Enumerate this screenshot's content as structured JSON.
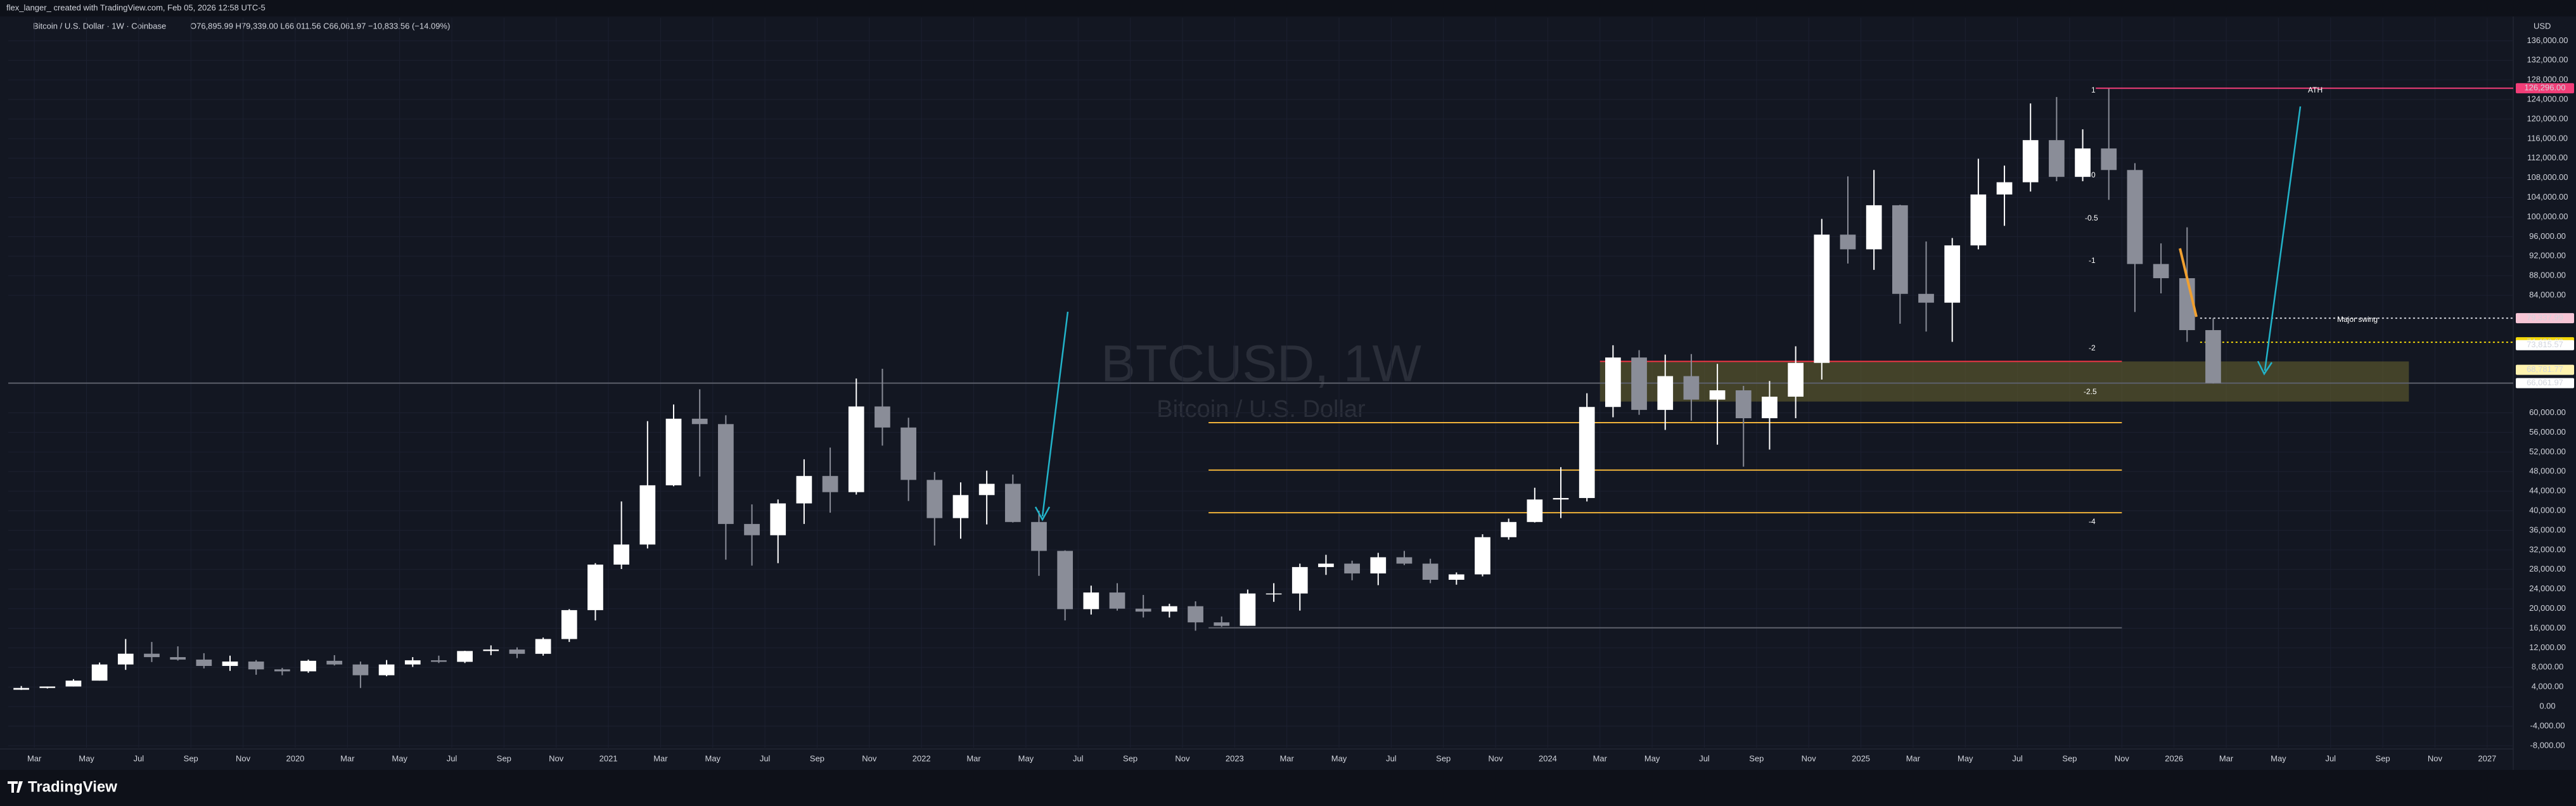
{
  "header": {
    "author": "flex_langer_ created with TradingView.com, Feb 05, 2026 12:58 UTC-5",
    "symbol": "Bitcoin / U.S. Dollar · 1W · Coinbase",
    "ohlc": "O76,895.99 H79,339.00 L66,011.56 C66,061.97 −10,833.56 (−14.09%)"
  },
  "chart_data": {
    "type": "candlestick",
    "watermark": "BTCUSD, 1W",
    "watermark_sub": "Bitcoin / U.S. Dollar",
    "currency": "USD",
    "x": [
      "2019-02",
      "2019-03",
      "2019-04",
      "2019-05",
      "2019-06",
      "2019-07",
      "2019-08",
      "2019-09",
      "2019-10",
      "2019-11",
      "2019-12",
      "2020-01",
      "2020-02",
      "2020-03",
      "2020-04",
      "2020-05",
      "2020-06",
      "2020-07",
      "2020-08",
      "2020-09",
      "2020-10",
      "2020-11",
      "2020-12",
      "2021-01",
      "2021-02",
      "2021-03",
      "2021-04",
      "2021-05",
      "2021-06",
      "2021-07",
      "2021-08",
      "2021-09",
      "2021-10",
      "2021-11",
      "2021-12",
      "2022-01",
      "2022-02",
      "2022-03",
      "2022-04",
      "2022-05",
      "2022-06",
      "2022-07",
      "2022-08",
      "2022-09",
      "2022-10",
      "2022-11",
      "2022-12",
      "2023-01",
      "2023-02",
      "2023-03",
      "2023-04",
      "2023-05",
      "2023-06",
      "2023-07",
      "2023-08",
      "2023-09",
      "2023-10",
      "2023-11",
      "2023-12",
      "2024-01",
      "2024-02",
      "2024-03",
      "2024-04",
      "2024-05",
      "2024-06",
      "2024-07",
      "2024-08",
      "2024-09",
      "2024-10",
      "2024-11",
      "2024-12",
      "2025-01",
      "2025-02",
      "2025-03",
      "2025-04",
      "2025-05",
      "2025-06",
      "2025-07",
      "2025-08",
      "2025-09",
      "2025-10",
      "2025-11",
      "2025-12",
      "2026-01",
      "2026-02"
    ],
    "open": [
      3440,
      3800,
      4100,
      5300,
      8600,
      10800,
      10100,
      9600,
      8300,
      9200,
      7600,
      7200,
      9350,
      8600,
      6400,
      8600,
      9450,
      9140,
      11350,
      11650,
      10780,
      13800,
      19700,
      29000,
      33100,
      45200,
      58800,
      57700,
      37300,
      35000,
      41500,
      47100,
      43800,
      61300,
      57000,
      46300,
      38500,
      43200,
      45500,
      37700,
      31800,
      19900,
      23300,
      20000,
      19400,
      20500,
      17200,
      16500,
      23100,
      23100,
      28500,
      29200,
      27200,
      30500,
      29200,
      25900,
      27000,
      34600,
      37700,
      42300,
      42600,
      61200,
      71300,
      60600,
      67500,
      62700,
      64600,
      58900,
      63300,
      70200,
      96400,
      93400,
      102400,
      84300,
      82500,
      94200,
      104600,
      107100,
      115700,
      108200,
      114000,
      109600,
      90400,
      87500,
      76895.99
    ],
    "high": [
      4200,
      4100,
      5600,
      9000,
      13800,
      13200,
      12300,
      10900,
      10400,
      9500,
      7900,
      9600,
      10500,
      9200,
      9500,
      10100,
      10400,
      11400,
      12500,
      12100,
      14100,
      19900,
      29300,
      41900,
      58300,
      61700,
      64800,
      59500,
      41300,
      42300,
      50500,
      52900,
      67000,
      69000,
      59000,
      47900,
      45800,
      48200,
      47400,
      40000,
      31900,
      24700,
      25200,
      22800,
      21000,
      21500,
      18400,
      23900,
      25200,
      29200,
      31000,
      29800,
      31400,
      31800,
      30200,
      27400,
      35200,
      38400,
      44700,
      48900,
      64000,
      73800,
      72800,
      71900,
      72000,
      70000,
      65500,
      66500,
      73600,
      99600,
      108300,
      109600,
      102500,
      95000,
      95700,
      111900,
      110500,
      123200,
      124500,
      117900,
      126200,
      111000,
      94600,
      97900,
      79339
    ],
    "low": [
      3400,
      3700,
      4100,
      5300,
      7500,
      9100,
      9400,
      7800,
      7300,
      6500,
      6400,
      6900,
      8400,
      3800,
      6200,
      8100,
      8900,
      8900,
      10500,
      9900,
      10400,
      13200,
      17600,
      28100,
      32300,
      45000,
      47000,
      30000,
      28800,
      29300,
      37300,
      39600,
      43300,
      53300,
      42000,
      32900,
      34300,
      37200,
      37600,
      26700,
      17600,
      18800,
      19600,
      18200,
      18200,
      15500,
      16300,
      16500,
      21400,
      19600,
      26900,
      25800,
      24800,
      28900,
      25200,
      24900,
      26600,
      34100,
      37600,
      38500,
      41900,
      59100,
      59600,
      56500,
      58400,
      53500,
      49000,
      52500,
      58900,
      66800,
      90500,
      89200,
      78200,
      76600,
      74500,
      93400,
      98200,
      105200,
      107300,
      107300,
      103500,
      80600,
      84400,
      74500,
      66011.56
    ],
    "close": [
      3800,
      4100,
      5300,
      8600,
      10800,
      10100,
      9600,
      8300,
      9200,
      7600,
      7200,
      9350,
      8600,
      6400,
      8600,
      9450,
      9140,
      11350,
      11650,
      10780,
      13800,
      19700,
      29000,
      33100,
      45200,
      58800,
      57700,
      37300,
      35000,
      41500,
      47100,
      43800,
      61300,
      57000,
      46300,
      38500,
      43200,
      45500,
      37700,
      31800,
      19900,
      23300,
      20000,
      19400,
      20500,
      17200,
      16500,
      23100,
      23100,
      28500,
      29200,
      27200,
      30500,
      29200,
      25900,
      27000,
      34600,
      37700,
      42300,
      42600,
      61200,
      71300,
      60600,
      67500,
      62700,
      64600,
      58900,
      63300,
      70200,
      96400,
      93400,
      102400,
      84300,
      82500,
      94200,
      104600,
      107100,
      115700,
      108200,
      114000,
      109600,
      90400,
      87500,
      76895.99,
      66061.97
    ],
    "up_color": "#ffffff",
    "down_color": "#8a8d98",
    "xlim": [
      "2019-02",
      "2027-02"
    ],
    "xticks": [
      {
        "value": "2019-03",
        "label": "Mar"
      },
      {
        "value": "2019-05",
        "label": "May"
      },
      {
        "value": "2019-07",
        "label": "Jul"
      },
      {
        "value": "2019-09",
        "label": "Sep"
      },
      {
        "value": "2019-11",
        "label": "Nov"
      },
      {
        "value": "2020-01",
        "label": "2020"
      },
      {
        "value": "2020-03",
        "label": "Mar"
      },
      {
        "value": "2020-05",
        "label": "May"
      },
      {
        "value": "2020-07",
        "label": "Jul"
      },
      {
        "value": "2020-09",
        "label": "Sep"
      },
      {
        "value": "2020-11",
        "label": "Nov"
      },
      {
        "value": "2021-01",
        "label": "2021"
      },
      {
        "value": "2021-03",
        "label": "Mar"
      },
      {
        "value": "2021-05",
        "label": "May"
      },
      {
        "value": "2021-07",
        "label": "Jul"
      },
      {
        "value": "2021-09",
        "label": "Sep"
      },
      {
        "value": "2021-11",
        "label": "Nov"
      },
      {
        "value": "2022-01",
        "label": "2022"
      },
      {
        "value": "2022-03",
        "label": "Mar"
      },
      {
        "value": "2022-05",
        "label": "May"
      },
      {
        "value": "2022-07",
        "label": "Jul"
      },
      {
        "value": "2022-09",
        "label": "Sep"
      },
      {
        "value": "2022-11",
        "label": "Nov"
      },
      {
        "value": "2023-01",
        "label": "2023"
      },
      {
        "value": "2023-03",
        "label": "Mar"
      },
      {
        "value": "2023-05",
        "label": "May"
      },
      {
        "value": "2023-07",
        "label": "Jul"
      },
      {
        "value": "2023-09",
        "label": "Sep"
      },
      {
        "value": "2023-11",
        "label": "Nov"
      },
      {
        "value": "2024-01",
        "label": "2024"
      },
      {
        "value": "2024-03",
        "label": "Mar"
      },
      {
        "value": "2024-05",
        "label": "May"
      },
      {
        "value": "2024-07",
        "label": "Jul"
      },
      {
        "value": "2024-09",
        "label": "Sep"
      },
      {
        "value": "2024-11",
        "label": "Nov"
      },
      {
        "value": "2025-01",
        "label": "2025"
      },
      {
        "value": "2025-03",
        "label": "Mar"
      },
      {
        "value": "2025-05",
        "label": "May"
      },
      {
        "value": "2025-07",
        "label": "Jul"
      },
      {
        "value": "2025-09",
        "label": "Sep"
      },
      {
        "value": "2025-11",
        "label": "Nov"
      },
      {
        "value": "2026-01",
        "label": "2026"
      },
      {
        "value": "2026-03",
        "label": "Mar"
      },
      {
        "value": "2026-05",
        "label": "May"
      },
      {
        "value": "2026-07",
        "label": "Jul"
      },
      {
        "value": "2026-09",
        "label": "Sep"
      },
      {
        "value": "2026-11",
        "label": "Nov"
      },
      {
        "value": "2027-01",
        "label": "2027"
      }
    ],
    "ylim": [
      -8400,
      140700
    ],
    "yticks": [
      {
        "value": -8000,
        "label": "-8,000.00"
      },
      {
        "value": -4000,
        "label": "-4,000.00"
      },
      {
        "value": 0,
        "label": "0.00"
      },
      {
        "value": 4000,
        "label": "4,000.00"
      },
      {
        "value": 8000,
        "label": "8,000.00"
      },
      {
        "value": 12000,
        "label": "12,000.00"
      },
      {
        "value": 16000,
        "label": "16,000.00"
      },
      {
        "value": 20000,
        "label": "20,000.00"
      },
      {
        "value": 24000,
        "label": "24,000.00"
      },
      {
        "value": 28000,
        "label": "28,000.00"
      },
      {
        "value": 32000,
        "label": "32,000.00"
      },
      {
        "value": 36000,
        "label": "36,000.00"
      },
      {
        "value": 40000,
        "label": "40,000.00"
      },
      {
        "value": 44000,
        "label": "44,000.00"
      },
      {
        "value": 48000,
        "label": "48,000.00"
      },
      {
        "value": 52000,
        "label": "52,000.00"
      },
      {
        "value": 56000,
        "label": "56,000.00"
      },
      {
        "value": 60000,
        "label": "60,000.00"
      },
      {
        "value": 84000,
        "label": "84,000.00"
      },
      {
        "value": 88000,
        "label": "88,000.00"
      },
      {
        "value": 92000,
        "label": "92,000.00"
      },
      {
        "value": 96000,
        "label": "96,000.00"
      },
      {
        "value": 100000,
        "label": "100,000.00"
      },
      {
        "value": 104000,
        "label": "104,000.00"
      },
      {
        "value": 108000,
        "label": "108,000.00"
      },
      {
        "value": 112000,
        "label": "112,000.00"
      },
      {
        "value": 116000,
        "label": "116,000.00"
      },
      {
        "value": 120000,
        "label": "120,000.00"
      },
      {
        "value": 124000,
        "label": "124,000.00"
      },
      {
        "value": 128000,
        "label": "128,000.00"
      },
      {
        "value": 132000,
        "label": "132,000.00"
      },
      {
        "value": 136000,
        "label": "136,000.00"
      }
    ],
    "grid": true,
    "levels": [
      {
        "value": 126296,
        "from": "2025-10",
        "to": "2027-02",
        "color": "#f23e78"
      },
      {
        "value": 70500,
        "from": "2024-03",
        "to": "2025-11",
        "color": "#f23645"
      },
      {
        "value": 79337.99,
        "from": "2026-02",
        "to": "2027-02",
        "color": "#d1d4dc",
        "dash": true
      },
      {
        "value": 74420.69,
        "from": "2026-02",
        "to": "2027-02",
        "color": "#f5d90a",
        "dash": true
      },
      {
        "value": 66061.97,
        "from": "2019-02",
        "to": "2027-02",
        "color": "#5d606b"
      },
      {
        "value": 58000,
        "from": "2022-12",
        "to": "2025-11",
        "color": "#f0b33a"
      },
      {
        "value": 48300,
        "from": "2022-12",
        "to": "2025-11",
        "color": "#f0b33a"
      },
      {
        "value": 39600,
        "from": "2022-12",
        "to": "2025-11",
        "color": "#f0b33a"
      },
      {
        "value": 16100,
        "from": "2022-12",
        "to": "2025-11",
        "color": "#5d606b"
      }
    ],
    "zone": {
      "low": 62300,
      "high": 70500,
      "from": "2024-03",
      "to": "2026-10",
      "color": "#6b6630"
    },
    "price_labels": [
      {
        "value": 126296,
        "label": "126,296.00",
        "bg": "#f23e78",
        "fg": "#ffffff"
      },
      {
        "value": 79337.99,
        "label": "79,337.99",
        "bg": "#f7c6d6",
        "fg": "#b0103f"
      },
      {
        "value": 74420.69,
        "label": "74,420.69",
        "bg": "#f5d90a",
        "fg": "#131722"
      },
      {
        "value": 73815.57,
        "label": "73,815.57",
        "bg": "#ffffff",
        "fg": "#131722"
      },
      {
        "value": 68781.77,
        "label": "68,781.77",
        "bg": "#fff3b0",
        "fg": "#131722"
      },
      {
        "value": 66061.97,
        "label": "66,061.97",
        "bg": "#ffffff",
        "fg": "#131722"
      }
    ],
    "annotations": {
      "ath": "ATH",
      "swing": "Major swing",
      "f1": "1",
      "f0": "0",
      "fm05": "-0.5",
      "fm1": "-1",
      "fm2": "-2",
      "fm25": "-2.5",
      "fm4": "-4"
    }
  },
  "footer": {
    "brand": "TradingView"
  }
}
